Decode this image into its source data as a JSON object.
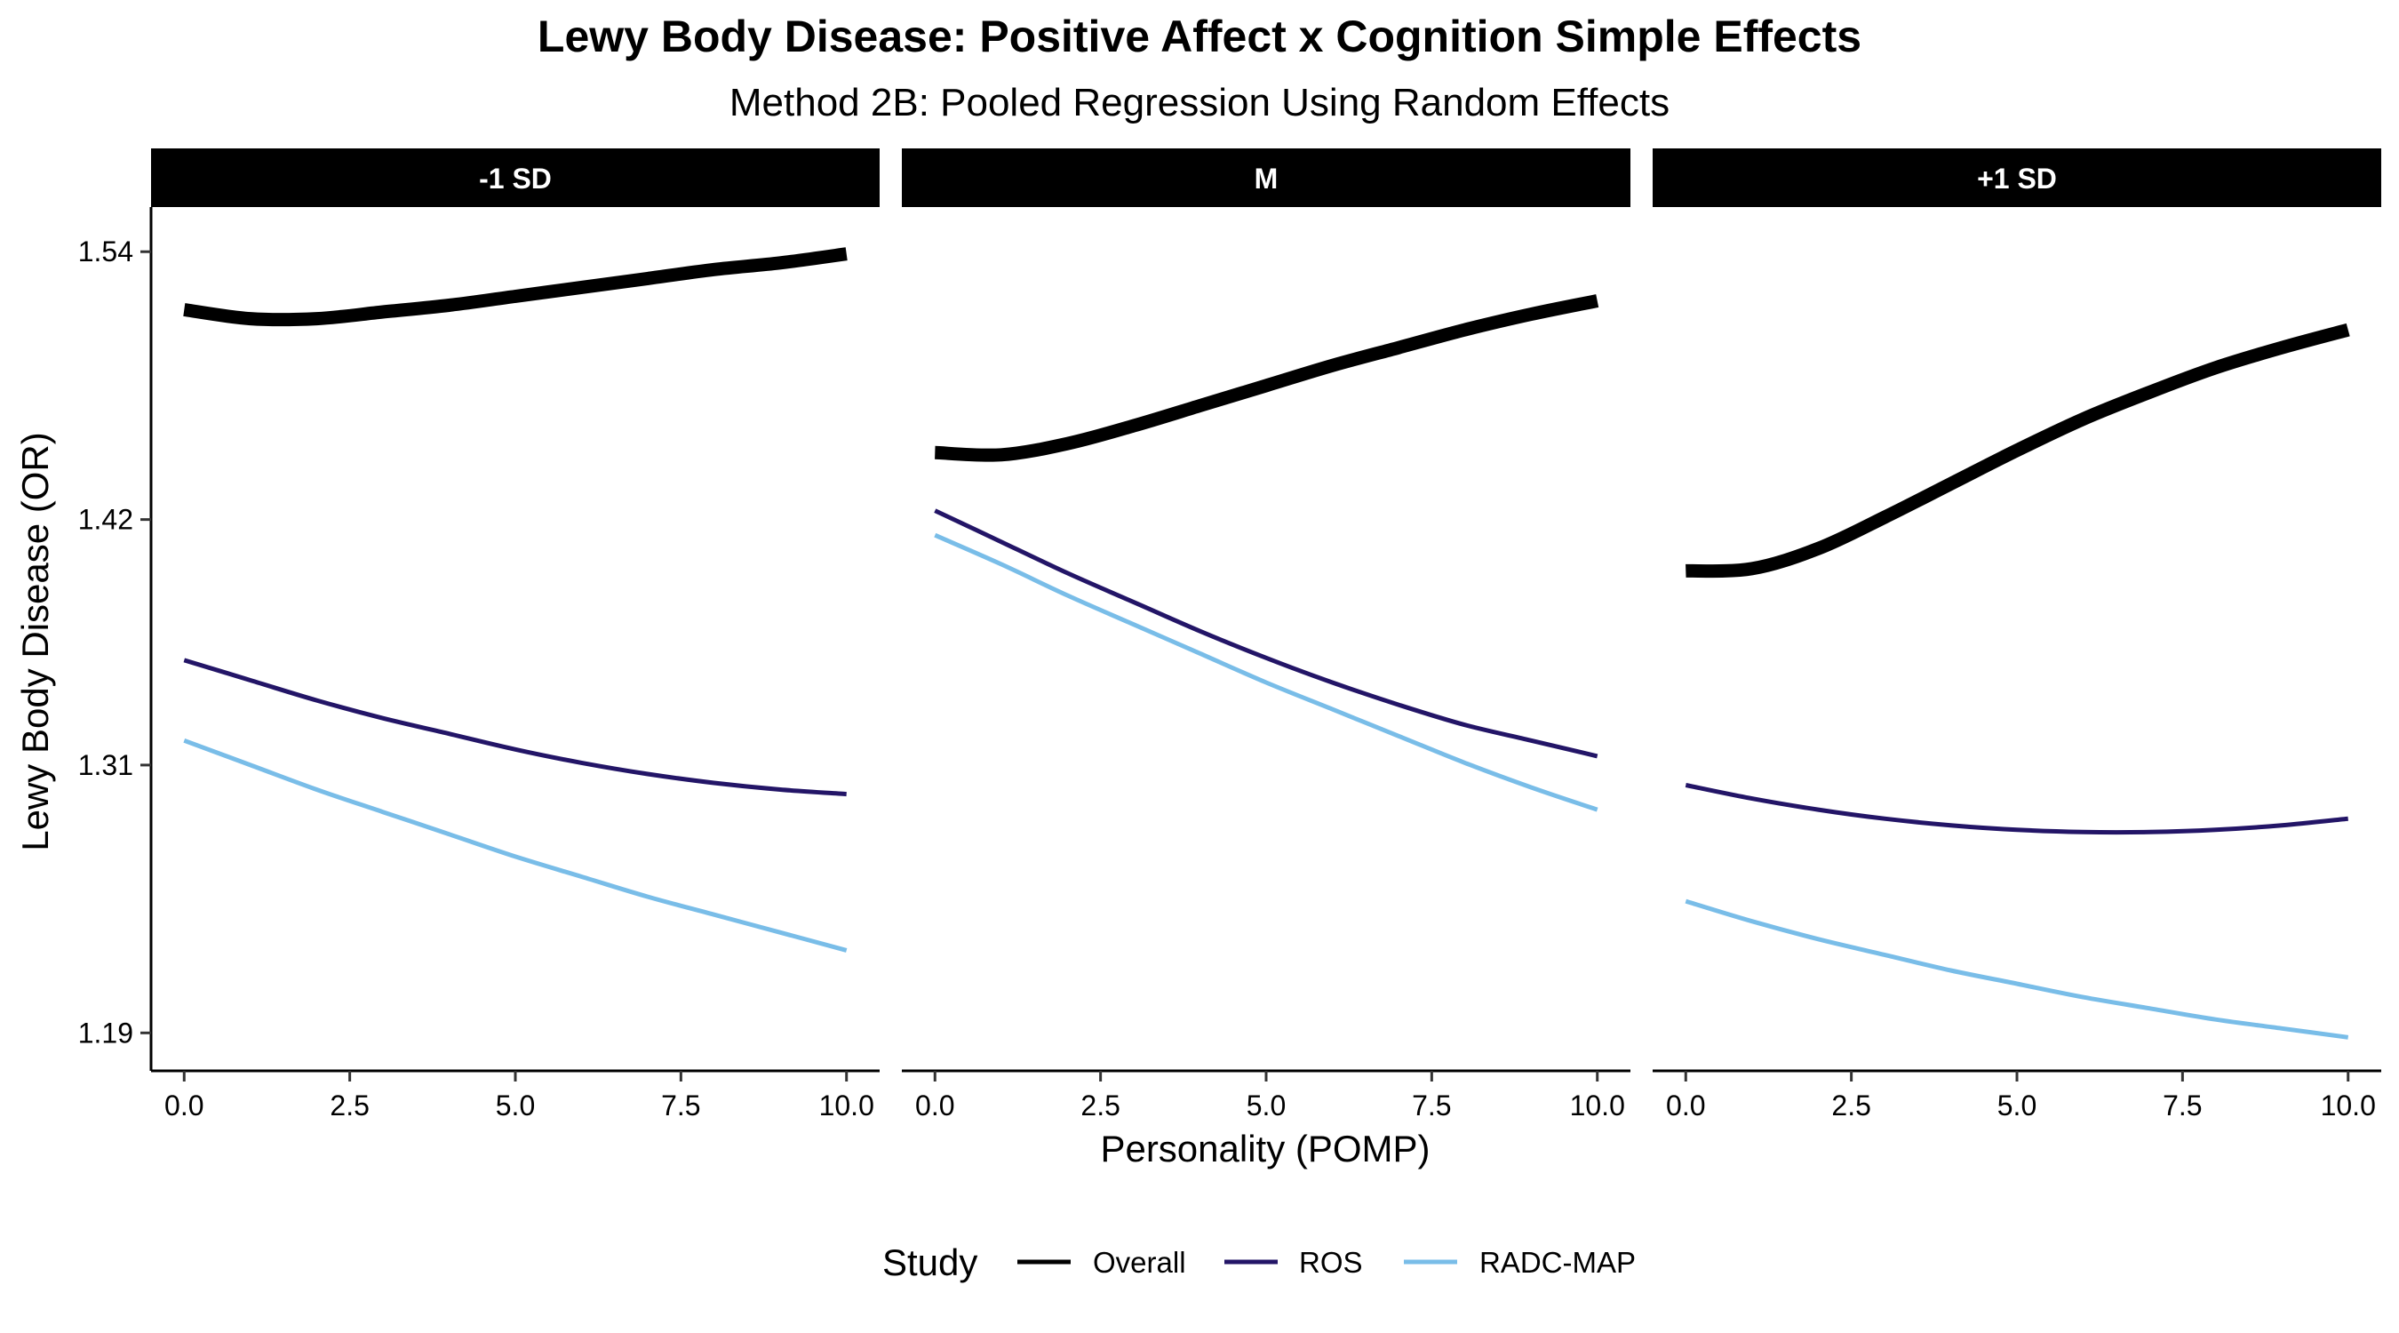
{
  "chart_data": {
    "type": "line",
    "title": "Lewy Body Disease: Positive Affect x Cognition Simple Effects",
    "subtitle": "Method 2B: Pooled Regression Using Random Effects",
    "xlabel": "Personality (POMP)",
    "ylabel": "Lewy Body Disease (OR)",
    "x_ticks": [
      0,
      2.5,
      5,
      7.5,
      10
    ],
    "x_tick_labels": [
      "0.0",
      "2.5",
      "5.0",
      "7.5",
      "10.0"
    ],
    "y_ticks": [
      1.19,
      1.31,
      1.42,
      1.54
    ],
    "y_tick_labels": [
      "1.19",
      "1.31",
      "1.42",
      "1.54"
    ],
    "xlim": [
      -0.5,
      10.5
    ],
    "ylim": [
      1.173,
      1.56
    ],
    "grid": false,
    "legend": {
      "title": "Study",
      "placement": "bottom",
      "entries": [
        {
          "name": "Overall",
          "color": "#000000"
        },
        {
          "name": "ROS",
          "color": "#231567"
        },
        {
          "name": "RADC-MAP",
          "color": "#79BDE8"
        }
      ]
    },
    "facets": [
      {
        "label": "-1 SD",
        "series": [
          {
            "name": "Overall",
            "color": "#000000",
            "x": [
              0,
              1,
              2,
              3,
              4,
              5,
              6,
              7,
              8,
              9,
              10
            ],
            "y": [
              1.514,
              1.51,
              1.51,
              1.513,
              1.516,
              1.52,
              1.524,
              1.528,
              1.532,
              1.535,
              1.539
            ]
          },
          {
            "name": "ROS",
            "color": "#231567",
            "x": [
              0,
              1,
              2,
              3,
              4,
              5,
              6,
              7,
              8,
              9,
              10
            ],
            "y": [
              1.357,
              1.348,
              1.339,
              1.331,
              1.324,
              1.317,
              1.311,
              1.306,
              1.302,
              1.299,
              1.297
            ]
          },
          {
            "name": "RADC-MAP",
            "color": "#79BDE8",
            "x": [
              0,
              1,
              2,
              3,
              4,
              5,
              6,
              7,
              8,
              9,
              10
            ],
            "y": [
              1.321,
              1.31,
              1.299,
              1.289,
              1.279,
              1.269,
              1.26,
              1.251,
              1.243,
              1.235,
              1.227
            ]
          }
        ]
      },
      {
        "label": "M",
        "series": [
          {
            "name": "Overall",
            "color": "#000000",
            "x": [
              0,
              1,
              2,
              3,
              4,
              5,
              6,
              7,
              8,
              9,
              10
            ],
            "y": [
              1.45,
              1.449,
              1.454,
              1.462,
              1.471,
              1.48,
              1.489,
              1.497,
              1.505,
              1.512,
              1.518
            ]
          },
          {
            "name": "ROS",
            "color": "#231567",
            "x": [
              0,
              1,
              2,
              3,
              4,
              5,
              6,
              7,
              8,
              9,
              10
            ],
            "y": [
              1.424,
              1.41,
              1.396,
              1.383,
              1.37,
              1.358,
              1.347,
              1.337,
              1.328,
              1.321,
              1.314
            ]
          },
          {
            "name": "RADC-MAP",
            "color": "#79BDE8",
            "x": [
              0,
              1,
              2,
              3,
              4,
              5,
              6,
              7,
              8,
              9,
              10
            ],
            "y": [
              1.413,
              1.4,
              1.386,
              1.373,
              1.36,
              1.347,
              1.335,
              1.323,
              1.311,
              1.3,
              1.29
            ]
          }
        ]
      },
      {
        "label": "+1 SD",
        "series": [
          {
            "name": "Overall",
            "color": "#000000",
            "x": [
              0,
              1,
              2,
              3,
              4,
              5,
              6,
              7,
              8,
              9,
              10
            ],
            "y": [
              1.397,
              1.398,
              1.407,
              1.421,
              1.436,
              1.451,
              1.465,
              1.477,
              1.488,
              1.497,
              1.505
            ]
          },
          {
            "name": "ROS",
            "color": "#231567",
            "x": [
              0,
              1,
              2,
              3,
              4,
              5,
              6,
              7,
              8,
              9,
              10
            ],
            "y": [
              1.301,
              1.295,
              1.29,
              1.286,
              1.283,
              1.281,
              1.28,
              1.28,
              1.281,
              1.283,
              1.286
            ]
          },
          {
            "name": "RADC-MAP",
            "color": "#79BDE8",
            "x": [
              0,
              1,
              2,
              3,
              4,
              5,
              6,
              7,
              8,
              9,
              10
            ],
            "y": [
              1.249,
              1.24,
              1.232,
              1.225,
              1.218,
              1.212,
              1.206,
              1.201,
              1.196,
              1.192,
              1.188
            ]
          }
        ]
      }
    ]
  }
}
